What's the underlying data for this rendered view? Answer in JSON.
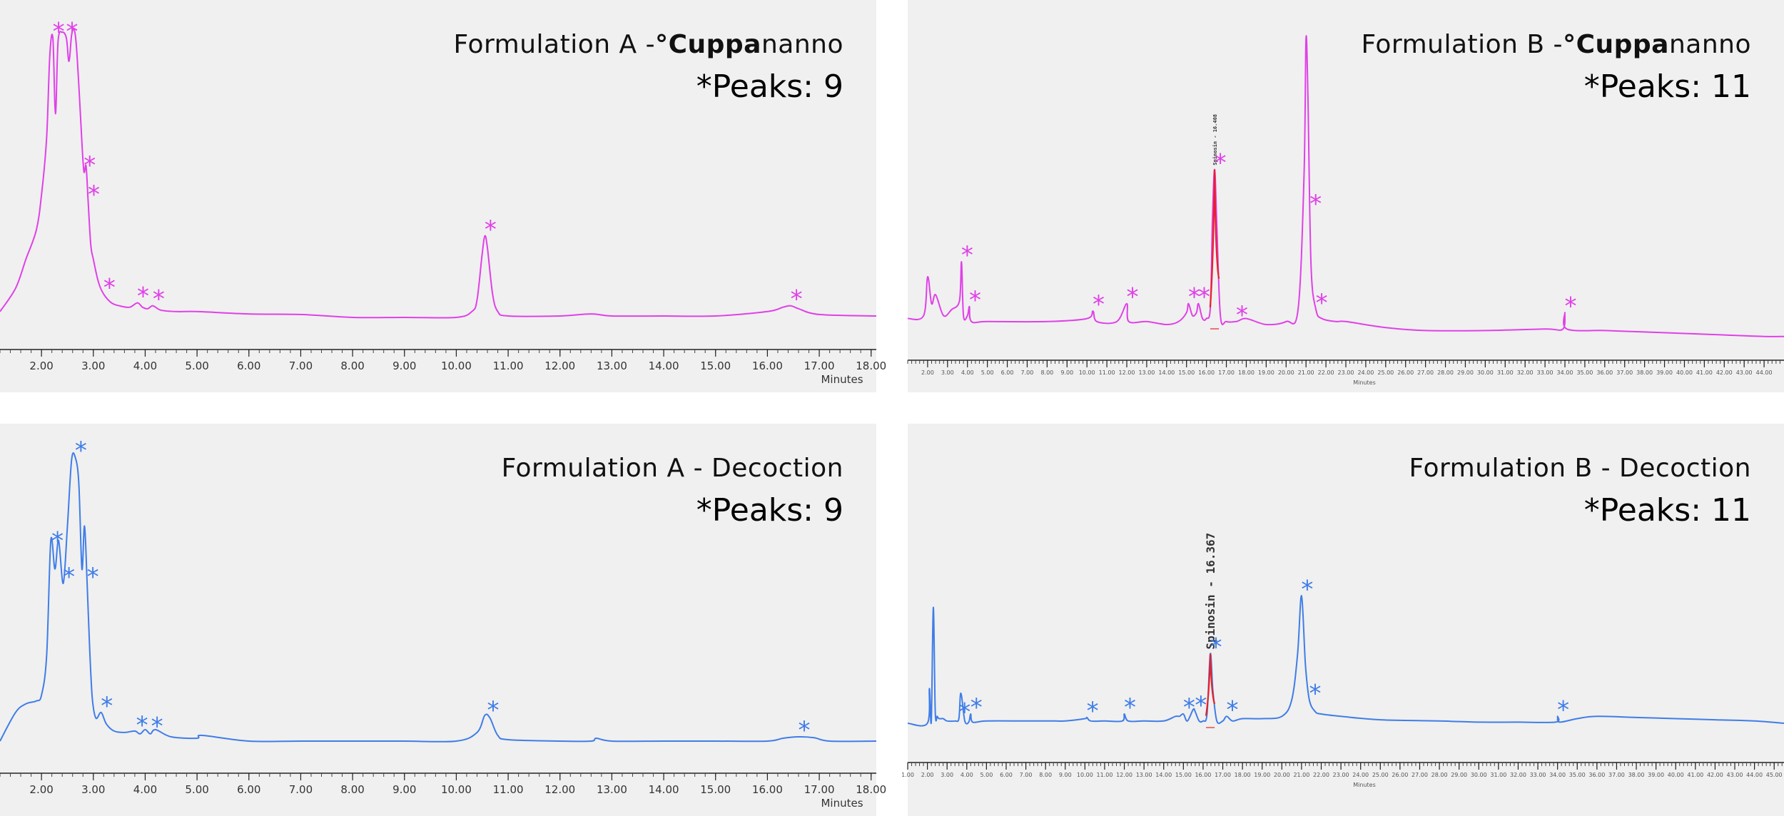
{
  "colors": {
    "cuppa": "#e040e8",
    "decoction": "#3f7de8",
    "spinosin": "#e8202a",
    "panel_bg": "#f0f0f0"
  },
  "panels": [
    {
      "id": "a-cup",
      "title_prefix": "Formulation A -",
      "title_brand_bold": "°Cuppa",
      "title_brand_rest": "nanno",
      "peaks_label": "*Peaks: 9",
      "color_key": "cuppa",
      "x_label": "Minutes",
      "tick_labels": [
        "2.00",
        "3.00",
        "4.00",
        "5.00",
        "6.00",
        "7.00",
        "8.00",
        "9.00",
        "10.00",
        "11.00",
        "12.00",
        "13.00",
        "14.00",
        "15.00",
        "16.00",
        "17.00",
        "18.00"
      ]
    },
    {
      "id": "b-cup",
      "title_prefix": "Formulation B -",
      "title_brand_bold": "°Cuppa",
      "title_brand_rest": "nanno",
      "peaks_label": "*Peaks: 11",
      "color_key": "cuppa",
      "x_label": "Minutes",
      "spinosin_label": "Spinosin - 16.408",
      "tick_labels": [
        "2.00",
        "3.00",
        "4.00",
        "5.00",
        "6.00",
        "7.00",
        "8.00",
        "9.00",
        "10.00",
        "11.00",
        "12.00",
        "13.00",
        "14.00",
        "15.00",
        "16.00",
        "17.00",
        "18.00",
        "19.00",
        "20.00",
        "21.00",
        "22.00",
        "23.00",
        "24.00",
        "25.00",
        "26.00",
        "27.00",
        "28.00",
        "29.00",
        "30.00",
        "31.00",
        "32.00",
        "33.00",
        "34.00",
        "35.00",
        "36.00",
        "37.00",
        "38.00",
        "39.00",
        "40.00",
        "41.00",
        "42.00",
        "43.00",
        "44.00"
      ]
    },
    {
      "id": "a-dec",
      "title_text": "Formulation A - Decoction",
      "peaks_label": "*Peaks: 9",
      "color_key": "decoction",
      "x_label": "Minutes",
      "tick_labels": [
        "2.00",
        "3.00",
        "4.00",
        "5.00",
        "6.00",
        "7.00",
        "8.00",
        "9.00",
        "10.00",
        "11.00",
        "12.00",
        "13.00",
        "14.00",
        "15.00",
        "16.00",
        "17.00",
        "18.00"
      ]
    },
    {
      "id": "b-dec",
      "title_text": "Formulation B - Decoction",
      "peaks_label": "*Peaks: 11",
      "color_key": "decoction",
      "x_label": "Minutes",
      "spinosin_label": "Spinosin - 16.367",
      "tick_labels": [
        "1.00",
        "2.00",
        "3.00",
        "4.00",
        "5.00",
        "6.00",
        "7.00",
        "8.00",
        "9.00",
        "10.00",
        "11.00",
        "12.00",
        "13.00",
        "14.00",
        "15.00",
        "16.00",
        "17.00",
        "18.00",
        "19.00",
        "20.00",
        "21.00",
        "22.00",
        "23.00",
        "24.00",
        "25.00",
        "26.00",
        "27.00",
        "28.00",
        "29.00",
        "30.00",
        "31.00",
        "32.00",
        "33.00",
        "34.00",
        "35.00",
        "36.00",
        "37.00",
        "38.00",
        "39.00",
        "40.00",
        "41.00",
        "42.00",
        "43.00",
        "44.00",
        "45.00"
      ]
    }
  ],
  "chart_data": [
    {
      "type": "line",
      "title": "Formulation A - °Cuppananno",
      "xlabel": "Minutes",
      "xlim": [
        1.2,
        18.1
      ],
      "peak_count": 9,
      "peaks_at_minutes": [
        2.22,
        2.48,
        2.82,
        2.9,
        3.2,
        3.85,
        4.15,
        10.55,
        16.45
      ],
      "series": [
        {
          "x": [
            1.2,
            1.5,
            1.7,
            1.9,
            2.0,
            2.1,
            2.16,
            2.22,
            2.27,
            2.32,
            2.4,
            2.48,
            2.53,
            2.58,
            2.63,
            2.67,
            2.72,
            2.78,
            2.82,
            2.86,
            2.9,
            2.95,
            3.0,
            3.1,
            3.2,
            3.35,
            3.5,
            3.7,
            3.85,
            3.95,
            4.05,
            4.15,
            4.3,
            4.6,
            5.0,
            6.0,
            7.0,
            8.0,
            9.0,
            10.0,
            10.3,
            10.4,
            10.5,
            10.55,
            10.6,
            10.7,
            10.8,
            11.0,
            12.0,
            12.6,
            13.0,
            14.0,
            15.0,
            16.0,
            16.3,
            16.45,
            16.6,
            17.0,
            18.1
          ],
          "y": [
            0.02,
            0.1,
            0.2,
            0.3,
            0.42,
            0.62,
            0.9,
            0.96,
            0.7,
            0.95,
            0.98,
            0.96,
            0.88,
            0.97,
            0.99,
            0.94,
            0.8,
            0.6,
            0.5,
            0.52,
            0.4,
            0.25,
            0.2,
            0.12,
            0.08,
            0.05,
            0.04,
            0.035,
            0.05,
            0.035,
            0.03,
            0.04,
            0.025,
            0.02,
            0.02,
            0.012,
            0.01,
            0.0,
            0.0,
            0.0,
            0.02,
            0.06,
            0.22,
            0.28,
            0.24,
            0.08,
            0.02,
            0.005,
            0.005,
            0.012,
            0.005,
            0.005,
            0.005,
            0.02,
            0.035,
            0.04,
            0.03,
            0.01,
            0.005
          ]
        }
      ]
    },
    {
      "type": "line",
      "title": "Formulation B - °Cuppananno",
      "xlabel": "Minutes",
      "xlim": [
        1.0,
        45.0
      ],
      "peak_count": 11,
      "peaks_at_minutes": [
        3.7,
        4.1,
        10.3,
        12.0,
        15.1,
        15.6,
        16.41,
        17.5,
        21.2,
        21.5,
        34.0
      ],
      "spinosin_peak": {
        "label": "Spinosin - 16.408",
        "x": 16.408,
        "y": 0.52
      },
      "series": [
        {
          "x": [
            1.0,
            1.8,
            2.0,
            2.2,
            2.4,
            2.8,
            3.2,
            3.6,
            3.7,
            3.8,
            4.0,
            4.1,
            4.2,
            5.0,
            8.0,
            10.0,
            10.3,
            10.5,
            11.5,
            12.0,
            12.1,
            13.0,
            14.0,
            14.6,
            15.0,
            15.1,
            15.3,
            15.5,
            15.6,
            15.8,
            16.0,
            16.2,
            16.3,
            16.41,
            16.52,
            16.7,
            17.0,
            17.5,
            18.0,
            19.0,
            20.0,
            20.6,
            20.9,
            21.0,
            21.1,
            21.25,
            21.5,
            21.8,
            22.5,
            23.0,
            25.0,
            27.0,
            30.0,
            33.0,
            33.9,
            34.0,
            34.1,
            36.0,
            38.0,
            40.0,
            42.0,
            44.0,
            45.0
          ],
          "y": [
            0.02,
            0.03,
            0.16,
            0.07,
            0.1,
            0.03,
            0.05,
            0.08,
            0.21,
            0.03,
            0.03,
            0.06,
            0.01,
            0.01,
            0.01,
            0.02,
            0.045,
            0.01,
            0.01,
            0.07,
            0.01,
            0.01,
            0.0,
            0.01,
            0.04,
            0.07,
            0.03,
            0.04,
            0.07,
            0.02,
            0.02,
            0.06,
            0.35,
            0.52,
            0.34,
            0.03,
            0.01,
            0.01,
            0.02,
            0.0,
            0.01,
            0.05,
            0.5,
            0.96,
            0.75,
            0.2,
            0.05,
            0.02,
            0.01,
            0.01,
            -0.01,
            -0.02,
            -0.02,
            -0.015,
            -0.015,
            0.04,
            -0.015,
            -0.02,
            -0.025,
            -0.03,
            -0.035,
            -0.04,
            -0.04
          ]
        }
      ]
    },
    {
      "type": "line",
      "title": "Formulation A - Decoction",
      "xlabel": "Minutes",
      "xlim": [
        1.2,
        18.1
      ],
      "peak_count": 9,
      "peaks_at_minutes": [
        2.2,
        2.42,
        2.65,
        2.88,
        3.15,
        3.83,
        4.12,
        10.6,
        16.6
      ],
      "series": [
        {
          "x": [
            1.2,
            1.5,
            1.7,
            1.9,
            2.0,
            2.1,
            2.18,
            2.26,
            2.33,
            2.42,
            2.5,
            2.58,
            2.65,
            2.72,
            2.78,
            2.83,
            2.88,
            2.93,
            2.98,
            3.05,
            3.15,
            3.25,
            3.4,
            3.6,
            3.8,
            3.9,
            4.0,
            4.1,
            4.2,
            4.5,
            5.0,
            5.1,
            6.0,
            7.0,
            8.0,
            9.0,
            10.0,
            10.4,
            10.55,
            10.65,
            10.8,
            11.0,
            12.0,
            12.6,
            12.7,
            13.0,
            14.0,
            15.0,
            16.0,
            16.3,
            16.6,
            16.9,
            17.2,
            18.1
          ],
          "y": [
            0.0,
            0.1,
            0.13,
            0.14,
            0.16,
            0.3,
            0.7,
            0.6,
            0.7,
            0.55,
            0.75,
            0.98,
            0.99,
            0.9,
            0.6,
            0.75,
            0.55,
            0.32,
            0.15,
            0.08,
            0.1,
            0.06,
            0.035,
            0.03,
            0.035,
            0.025,
            0.04,
            0.025,
            0.04,
            0.015,
            0.01,
            0.02,
            0.0,
            0.0,
            0.0,
            0.0,
            0.0,
            0.03,
            0.09,
            0.08,
            0.02,
            0.005,
            0.0,
            0.0,
            0.01,
            0.0,
            0.0,
            0.0,
            0.0,
            0.01,
            0.015,
            0.012,
            0.0,
            0.0
          ]
        }
      ]
    },
    {
      "type": "line",
      "title": "Formulation B - Decoction",
      "xlabel": "Minutes",
      "xlim": [
        1.0,
        45.5
      ],
      "peak_count": 11,
      "peaks_at_minutes": [
        3.6,
        4.2,
        10.1,
        12.0,
        15.0,
        15.6,
        16.367,
        17.2,
        21.0,
        21.4,
        34.0
      ],
      "spinosin_peak": {
        "label": "Spinosin - 16.367",
        "x": 16.367,
        "y": 0.3
      },
      "series": [
        {
          "x": [
            1.0,
            2.0,
            2.1,
            2.2,
            2.3,
            2.4,
            2.5,
            2.6,
            2.8,
            3.0,
            3.4,
            3.6,
            3.7,
            3.9,
            4.1,
            4.2,
            4.3,
            5.0,
            7.0,
            8.5,
            9.0,
            10.0,
            10.1,
            10.3,
            11.0,
            11.9,
            12.0,
            12.2,
            13.0,
            14.0,
            14.6,
            14.8,
            15.0,
            15.2,
            15.5,
            15.6,
            15.8,
            16.0,
            16.2,
            16.367,
            16.5,
            16.7,
            17.0,
            17.2,
            17.5,
            18.0,
            19.0,
            20.0,
            20.5,
            20.8,
            21.0,
            21.2,
            21.4,
            21.7,
            22.0,
            23.0,
            25.0,
            28.0,
            30.0,
            32.0,
            33.9,
            34.0,
            34.1,
            35.0,
            36.0,
            38.0,
            40.0,
            42.0,
            44.0,
            45.5
          ],
          "y": [
            0.0,
            0.0,
            0.15,
            0.01,
            0.5,
            0.05,
            0.03,
            0.02,
            0.02,
            0.01,
            0.01,
            0.02,
            0.13,
            0.01,
            0.005,
            0.04,
            0.005,
            0.01,
            0.01,
            0.01,
            0.01,
            0.02,
            0.025,
            0.01,
            0.01,
            0.01,
            0.04,
            0.01,
            0.01,
            0.01,
            0.03,
            0.03,
            0.04,
            0.01,
            0.06,
            0.05,
            0.01,
            0.01,
            0.04,
            0.3,
            0.14,
            0.01,
            0.01,
            0.03,
            0.01,
            0.02,
            0.02,
            0.03,
            0.1,
            0.3,
            0.55,
            0.25,
            0.1,
            0.05,
            0.04,
            0.03,
            0.015,
            0.01,
            0.005,
            0.005,
            0.005,
            0.03,
            0.005,
            0.02,
            0.03,
            0.025,
            0.02,
            0.015,
            0.01,
            0.0
          ]
        }
      ]
    }
  ]
}
